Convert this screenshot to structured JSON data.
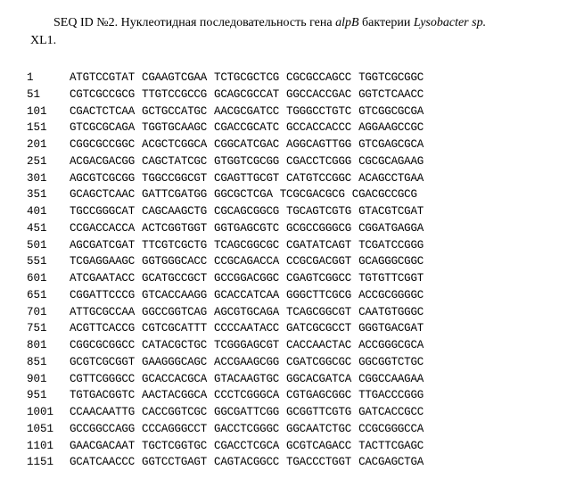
{
  "title": {
    "prefix": "SEQ ID №2. Нуклеотидная последовательность гена ",
    "gene": "alpB",
    "mid": " бактерии ",
    "organism": "Lysobacter sp.",
    "cont": "XL1."
  },
  "colors": {
    "background": "#ffffff",
    "text": "#000000"
  },
  "typography": {
    "title_font": "Times New Roman",
    "title_size_pt": 11,
    "seq_font": "Courier New",
    "seq_size_pt": 9.5
  },
  "sequence": {
    "block_size": 10,
    "blocks_per_row": 5,
    "rows": [
      {
        "pos": "1",
        "blocks": [
          "ATGTCCGTAT",
          "CGAAGTCGAA",
          "TCTGCGCTCG",
          "CGCGCCAGCC",
          "TGGTCGCGGC"
        ]
      },
      {
        "pos": "51",
        "blocks": [
          "CGTCGCCGCG",
          "TTGTCCGCCG",
          "GCAGCGCCAT",
          "GGCCACCGAC",
          "GGTCTCAACC"
        ]
      },
      {
        "pos": "101",
        "blocks": [
          "CGACTCTCAA",
          "GCTGCCATGC",
          "AACGCGATCC",
          "TGGGCCTGTC",
          "GTCGGCGCGA"
        ]
      },
      {
        "pos": "151",
        "blocks": [
          "GTCGCGCAGA",
          "TGGTGCAAGC",
          "CGACCGCATC",
          "GCCACCACCC",
          "AGGAAGCCGC"
        ]
      },
      {
        "pos": "201",
        "blocks": [
          "CGGCGCCGGC",
          "ACGCTCGGCA",
          "CGGCATCGAC",
          "AGGCAGTTGG",
          "GTCGAGCGCA"
        ]
      },
      {
        "pos": "251",
        "blocks": [
          "ACGACGACGG",
          "CAGCTATCGC",
          "GTGGTCGCGG",
          "CGACCTCGGG",
          "CGCGCAGAAG"
        ]
      },
      {
        "pos": "301",
        "blocks": [
          "AGCGTCGCGG",
          "TGGCCGGCGT",
          "CGAGTTGCGT",
          "CATGTCCGGC",
          "ACAGCCTGAA"
        ]
      },
      {
        "pos": "351",
        "blocks": [
          "GCAGCTCAAC",
          "GATTCGATGG",
          "GGCGCTCGA",
          "TCGCGACGCG",
          "CGACGCCGCG"
        ]
      },
      {
        "pos": "401",
        "blocks": [
          "TGCCGGGCAT",
          "CAGCAAGCTG",
          "CGCAGCGGCG",
          "TGCAGTCGTG",
          "GTACGTCGAT"
        ]
      },
      {
        "pos": "451",
        "blocks": [
          "CCGACCACCA",
          "ACTCGGTGGT",
          "GGTGAGCGTC",
          "GCGCCGGGCG",
          "CGGATGAGGA"
        ]
      },
      {
        "pos": "501",
        "blocks": [
          "AGCGATCGAT",
          "TTCGTCGCTG",
          "TCAGCGGCGC",
          "CGATATCAGT",
          "TCGATCCGGG"
        ]
      },
      {
        "pos": "551",
        "blocks": [
          "TCGAGGAAGC",
          "GGTGGGCACC",
          "CCGCAGACCA",
          "CCGCGACGGT",
          "GCAGGGCGGC"
        ]
      },
      {
        "pos": "601",
        "blocks": [
          "ATCGAATACC",
          "GCATGCCGCT",
          "GCCGGACGGC",
          "CGAGTCGGCC",
          "TGTGTTCGGT"
        ]
      },
      {
        "pos": "651",
        "blocks": [
          "CGGATTCCCG",
          "GTCACCAAGG",
          "GCACCATCAA",
          "GGGCTTCGCG",
          "ACCGCGGGGC"
        ]
      },
      {
        "pos": "701",
        "blocks": [
          "ATTGCGCCAA",
          "GGCCGGTCAG",
          "AGCGTGCAGA",
          "TCAGCGGCGT",
          "CAATGTGGGC"
        ]
      },
      {
        "pos": "751",
        "blocks": [
          "ACGTTCACCG",
          "CGTCGCATTT",
          "CCCCAATACC",
          "GATCGCGCCT",
          "GGGTGACGAT"
        ]
      },
      {
        "pos": "801",
        "blocks": [
          "CGGCGCGGCC",
          "CATACGCTGC",
          "TCGGGAGCGT",
          "CACCAACTAC",
          "ACCGGGCGCA"
        ]
      },
      {
        "pos": "851",
        "blocks": [
          "GCGTCGCGGT",
          "GAAGGGCAGC",
          "ACCGAAGCGG",
          "CGATCGGCGC",
          "GGCGGTCTGC"
        ]
      },
      {
        "pos": "901",
        "blocks": [
          "CGTTCGGGCC",
          "GCACCACGCA",
          "GTACAAGTGC",
          "GGCACGATCA",
          "CGGCCAAGAA"
        ]
      },
      {
        "pos": "951",
        "blocks": [
          "TGTGACGGTC",
          "AACTACGGCA",
          "CCCTCGGGCA",
          "CGTGAGCGGC",
          "TTGACCCGGG"
        ]
      },
      {
        "pos": "1001",
        "blocks": [
          "CCAACAATTG",
          "CACCGGTCGC",
          "GGCGATTCGG",
          "GCGGTTCGTG",
          "GATCACCGCC"
        ]
      },
      {
        "pos": "1051",
        "blocks": [
          "GCCGGCCAGG",
          "CCCAGGGCCT",
          "GACCTCGGGC",
          "GGCAATCTGC",
          "CCGCGGGCCA"
        ]
      },
      {
        "pos": "1101",
        "blocks": [
          "GAACGACAAT",
          "TGCTCGGTGC",
          "CGACCTCGCA",
          "GCGTCAGACC",
          "TACTTCGAGC"
        ]
      },
      {
        "pos": "1151",
        "blocks": [
          "GCATCAACCC",
          "GGTCCTGAGT",
          "CAGTACGGCC",
          "TGACCCTGGT",
          "CACGAGCTGA"
        ]
      }
    ]
  }
}
